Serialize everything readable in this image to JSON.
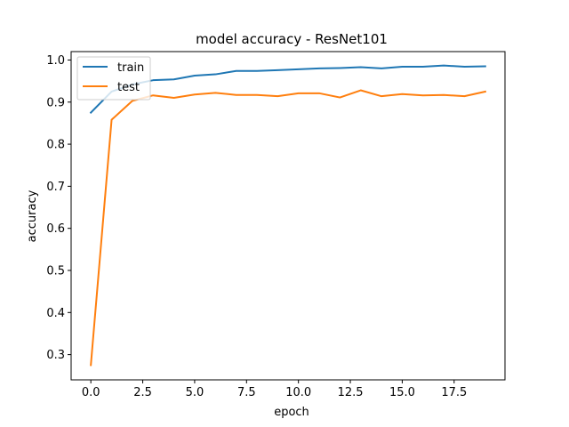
{
  "chart_data": {
    "type": "line",
    "title": "model accuracy - ResNet101",
    "xlabel": "epoch",
    "ylabel": "accuracy",
    "xlim": [
      -0.95,
      19.95
    ],
    "ylim": [
      0.24,
      1.02
    ],
    "xticks": [
      0.0,
      2.5,
      5.0,
      7.5,
      10.0,
      12.5,
      15.0,
      17.5
    ],
    "xtick_labels": [
      "0.0",
      "2.5",
      "5.0",
      "7.5",
      "10.0",
      "12.5",
      "15.0",
      "17.5"
    ],
    "yticks": [
      0.3,
      0.4,
      0.5,
      0.6,
      0.7,
      0.8,
      0.9,
      1.0
    ],
    "ytick_labels": [
      "0.3",
      "0.4",
      "0.5",
      "0.6",
      "0.7",
      "0.8",
      "0.9",
      "1.0"
    ],
    "grid": false,
    "legend_position": "upper-left",
    "x": [
      0,
      1,
      2,
      3,
      4,
      5,
      6,
      7,
      8,
      9,
      10,
      11,
      12,
      13,
      14,
      15,
      16,
      17,
      18,
      19
    ],
    "series": [
      {
        "name": "train",
        "color": "#1f77b4",
        "values": [
          0.875,
          0.925,
          0.942,
          0.952,
          0.954,
          0.963,
          0.966,
          0.974,
          0.974,
          0.976,
          0.978,
          0.98,
          0.981,
          0.983,
          0.98,
          0.984,
          0.984,
          0.987,
          0.984,
          0.985
        ]
      },
      {
        "name": "test",
        "color": "#ff7f0e",
        "values": [
          0.275,
          0.858,
          0.903,
          0.916,
          0.91,
          0.918,
          0.922,
          0.917,
          0.917,
          0.914,
          0.921,
          0.921,
          0.911,
          0.928,
          0.914,
          0.919,
          0.916,
          0.917,
          0.914,
          0.925
        ]
      }
    ]
  }
}
